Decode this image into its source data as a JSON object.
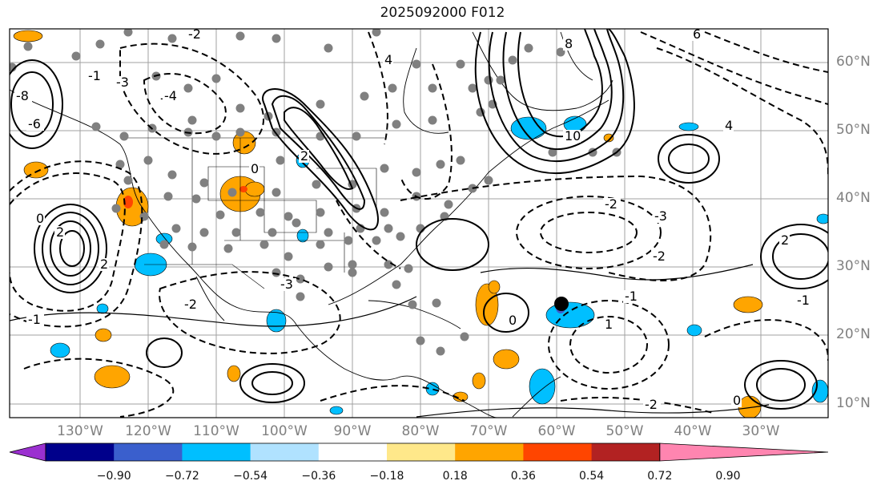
{
  "title": "2025092000 F012",
  "lon_labels": [
    "130°W",
    "120°W",
    "110°W",
    "100°W",
    "90°W",
    "80°W",
    "70°W",
    "60°W",
    "50°W",
    "40°W",
    "30°W"
  ],
  "lat_labels": [
    "60°N",
    "50°N",
    "40°N",
    "30°N",
    "20°N",
    "10°N"
  ],
  "colorbar": {
    "colors": [
      "#9b30d0",
      "#00008b",
      "#3a5fcd",
      "#00bfff",
      "#b0e2ff",
      "#ffffff",
      "#ffe88a",
      "#ffa500",
      "#ff4500",
      "#b22222",
      "#ff85b0"
    ],
    "labels": [
      "−0.90",
      "−0.72",
      "−0.54",
      "−0.36",
      "−0.18",
      "0.18",
      "0.36",
      "0.54",
      "0.72",
      "0.90"
    ]
  },
  "contour_labels": [
    "-2",
    "-3",
    "-4",
    "-1",
    "-8",
    "-6",
    "0",
    "2",
    "4",
    "6",
    "8",
    "10",
    "-2",
    "-3",
    "-2",
    "-1",
    "0",
    "2",
    "-2",
    "-1",
    "-1",
    "0",
    "0",
    "-2",
    "2",
    "4",
    "2",
    "1",
    "-4",
    "-3"
  ],
  "colors": {
    "positive_fill": "#ffa500",
    "negative_fill": "#00bfff",
    "contour": "#000000",
    "dots": "#808080",
    "grid": "#a0a0a0"
  }
}
